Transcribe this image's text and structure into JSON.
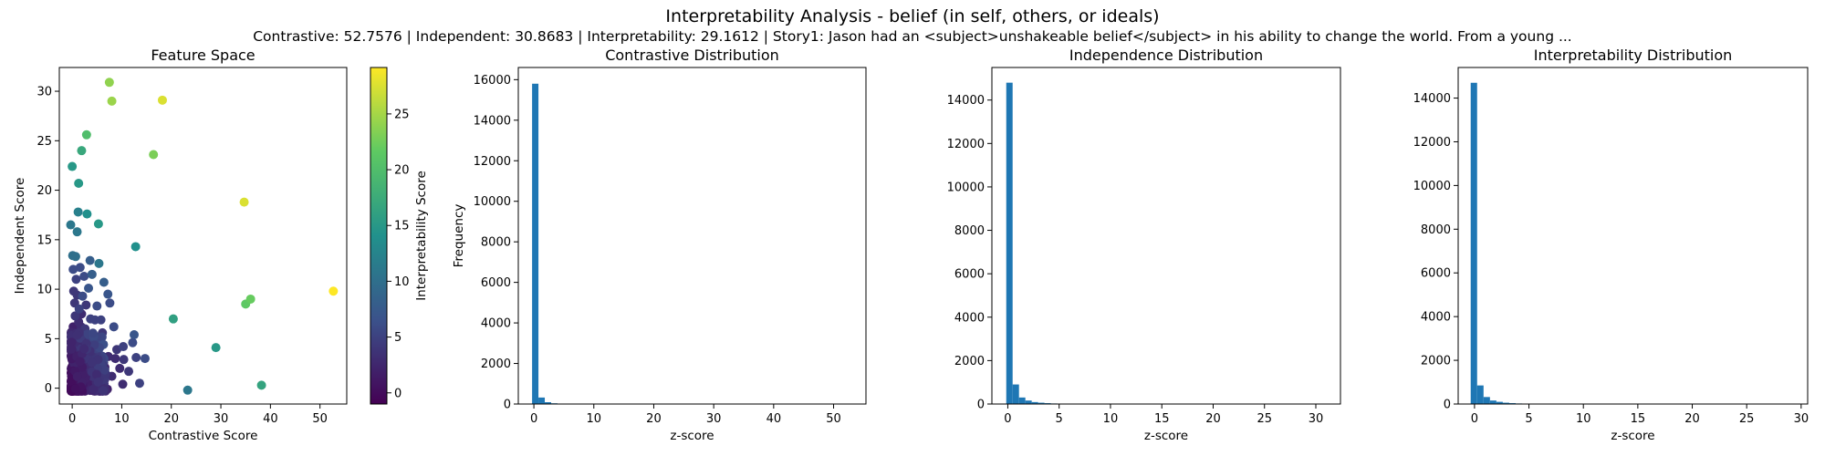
{
  "figure": {
    "title": "Interpretability Analysis - belief (in self, others, or ideals)",
    "subtitle": "Contrastive: 52.7576 | Independent: 30.8683 | Interpretability: 29.1612 | Story1: Jason had an <subject>unshakeable belief</subject> in his ability to change the world. From a young ..."
  },
  "colors": {
    "hist_bar": "#1f77b4",
    "colormap": "viridis"
  },
  "chart_data": [
    {
      "type": "scatter",
      "title": "Feature Space",
      "xlabel": "Contrastive Score",
      "ylabel": "Independent Score",
      "xlim": [
        -2.6,
        55.4
      ],
      "ylim": [
        -1.6,
        32.4
      ],
      "xticks": [
        0,
        10,
        20,
        30,
        40,
        50
      ],
      "yticks": [
        0,
        5,
        10,
        15,
        20,
        25,
        30
      ],
      "colorbar": {
        "label": "Interpretability Score",
        "range": [
          -1,
          29.16
        ],
        "ticks": [
          0,
          5,
          10,
          15,
          20,
          25
        ]
      },
      "grid": false,
      "points": [
        {
          "x": 52.7,
          "y": 9.8,
          "c": 29.2
        },
        {
          "x": 7.5,
          "y": 30.9,
          "c": 24
        },
        {
          "x": 18.2,
          "y": 29.1,
          "c": 27.5
        },
        {
          "x": 8.0,
          "y": 29.0,
          "c": 24.5
        },
        {
          "x": 2.9,
          "y": 25.6,
          "c": 20
        },
        {
          "x": 1.9,
          "y": 24.0,
          "c": 17
        },
        {
          "x": 16.4,
          "y": 23.6,
          "c": 23
        },
        {
          "x": 0.0,
          "y": 22.4,
          "c": 15
        },
        {
          "x": 1.3,
          "y": 20.7,
          "c": 15
        },
        {
          "x": 34.7,
          "y": 18.8,
          "c": 27.5
        },
        {
          "x": 1.2,
          "y": 17.8,
          "c": 12
        },
        {
          "x": 3.0,
          "y": 17.6,
          "c": 14
        },
        {
          "x": 5.3,
          "y": 16.6,
          "c": 15
        },
        {
          "x": -0.3,
          "y": 16.5,
          "c": 11
        },
        {
          "x": 1.0,
          "y": 15.8,
          "c": 11
        },
        {
          "x": 12.8,
          "y": 14.3,
          "c": 14
        },
        {
          "x": 0.1,
          "y": 13.4,
          "c": 10
        },
        {
          "x": 0.7,
          "y": 13.3,
          "c": 10
        },
        {
          "x": 5.4,
          "y": 12.6,
          "c": 11
        },
        {
          "x": 36.0,
          "y": 9.0,
          "c": 22
        },
        {
          "x": 35.0,
          "y": 8.5,
          "c": 21.5
        },
        {
          "x": 20.4,
          "y": 7.0,
          "c": 16
        },
        {
          "x": 29.0,
          "y": 4.1,
          "c": 15
        },
        {
          "x": 38.2,
          "y": 0.3,
          "c": 16.5
        },
        {
          "x": 23.3,
          "y": -0.2,
          "c": 11
        },
        {
          "x": 4.0,
          "y": 11.5,
          "c": 8
        },
        {
          "x": 6.4,
          "y": 10.7,
          "c": 8
        },
        {
          "x": 3.3,
          "y": 10.1,
          "c": 7
        },
        {
          "x": 7.2,
          "y": 9.5,
          "c": 7
        },
        {
          "x": 2.1,
          "y": 9.3,
          "c": 6
        },
        {
          "x": 5.0,
          "y": 8.3,
          "c": 6
        },
        {
          "x": 1.4,
          "y": 8.0,
          "c": 5
        },
        {
          "x": 7.6,
          "y": 8.6,
          "c": 6
        },
        {
          "x": 3.7,
          "y": 7.0,
          "c": 5
        },
        {
          "x": 4.6,
          "y": 6.9,
          "c": 5
        },
        {
          "x": 5.8,
          "y": 6.9,
          "c": 5
        },
        {
          "x": 8.4,
          "y": 6.2,
          "c": 6
        },
        {
          "x": 0.6,
          "y": 7.3,
          "c": 4
        },
        {
          "x": 2.6,
          "y": 6.0,
          "c": 4
        },
        {
          "x": 6.1,
          "y": 5.6,
          "c": 4
        },
        {
          "x": 12.5,
          "y": 5.4,
          "c": 7
        },
        {
          "x": 12.2,
          "y": 4.6,
          "c": 6
        },
        {
          "x": 10.3,
          "y": 4.2,
          "c": 5
        },
        {
          "x": 9.0,
          "y": 3.9,
          "c": 4
        },
        {
          "x": 14.7,
          "y": 3.0,
          "c": 6
        },
        {
          "x": 12.9,
          "y": 3.1,
          "c": 5
        },
        {
          "x": 10.4,
          "y": 2.9,
          "c": 4
        },
        {
          "x": 11.4,
          "y": 1.7,
          "c": 4
        },
        {
          "x": 13.6,
          "y": 0.5,
          "c": 5
        },
        {
          "x": 8.7,
          "y": 3.0,
          "c": 3
        },
        {
          "x": 7.3,
          "y": 3.2,
          "c": 3
        },
        {
          "x": 9.6,
          "y": 2.0,
          "c": 3
        },
        {
          "x": 8.0,
          "y": 1.2,
          "c": 3
        },
        {
          "x": 10.2,
          "y": 0.4,
          "c": 3
        },
        {
          "x": 5.4,
          "y": 4.1,
          "c": 3
        },
        {
          "x": 4.2,
          "y": 4.6,
          "c": 3
        },
        {
          "x": 6.6,
          "y": 2.1,
          "c": 2
        },
        {
          "x": 3.0,
          "y": 5.1,
          "c": 3
        },
        {
          "x": 1.8,
          "y": 6.2,
          "c": 3
        },
        {
          "x": 0.3,
          "y": 9.8,
          "c": 4
        },
        {
          "x": 0.8,
          "y": 11.0,
          "c": 5
        },
        {
          "x": 1.6,
          "y": 12.2,
          "c": 6
        },
        {
          "x": 2.4,
          "y": 11.3,
          "c": 6
        },
        {
          "x": 0.2,
          "y": 12.0,
          "c": 6
        },
        {
          "x": 3.6,
          "y": 12.9,
          "c": 8
        },
        {
          "x": 1.0,
          "y": 9.4,
          "c": 4
        },
        {
          "x": 2.8,
          "y": 8.4,
          "c": 4
        },
        {
          "x": 0.5,
          "y": 8.6,
          "c": 4
        },
        {
          "x": 1.9,
          "y": 7.5,
          "c": 3
        },
        {
          "x": 3.0,
          "y": 3.0,
          "c": 2
        },
        {
          "x": 4.0,
          "y": 2.2,
          "c": 2
        },
        {
          "x": 5.2,
          "y": 1.3,
          "c": 2
        },
        {
          "x": 6.2,
          "y": 0.6,
          "c": 2
        },
        {
          "x": 2.0,
          "y": 1.0,
          "c": 1
        },
        {
          "x": 1.2,
          "y": 2.4,
          "c": 1
        },
        {
          "x": 0.5,
          "y": 4.0,
          "c": 1.5
        },
        {
          "x": 0.3,
          "y": 1.5,
          "c": 0.5
        },
        {
          "x": 3.6,
          "y": 0.3,
          "c": 1
        },
        {
          "x": 7.1,
          "y": -0.1,
          "c": 2
        },
        {
          "x": 2.5,
          "y": 4.0,
          "c": 2
        },
        {
          "x": 4.4,
          "y": 3.3,
          "c": 2
        },
        {
          "x": 0.1,
          "y": 0.1,
          "c": 0
        },
        {
          "x": 1.0,
          "y": 0.4,
          "c": 0
        },
        {
          "x": 0.4,
          "y": 3.0,
          "c": 1
        },
        {
          "x": 1.7,
          "y": 3.6,
          "c": 1.5
        },
        {
          "x": 2.3,
          "y": 2.1,
          "c": 1
        },
        {
          "x": 3.2,
          "y": 1.6,
          "c": 1
        },
        {
          "x": 4.6,
          "y": 0.8,
          "c": 1.5
        },
        {
          "x": 0.6,
          "y": 5.4,
          "c": 2
        },
        {
          "x": 1.3,
          "y": 6.7,
          "c": 3
        },
        {
          "x": 0.2,
          "y": 6.2,
          "c": 2
        }
      ]
    },
    {
      "type": "bar",
      "title": "Contrastive Distribution",
      "xlabel": "z-score",
      "ylabel": "Frequency",
      "xlim": [
        -2.6,
        55.4
      ],
      "ylim": [
        0,
        16600
      ],
      "xticks": [
        0,
        10,
        20,
        30,
        40,
        50
      ],
      "yticks": [
        0,
        2000,
        4000,
        6000,
        8000,
        10000,
        12000,
        14000,
        16000
      ],
      "bin_edges_start": -0.3,
      "bin_width": 1.06,
      "values": [
        15800,
        320,
        90,
        35,
        18,
        10,
        7,
        5,
        3,
        2
      ]
    },
    {
      "type": "bar",
      "title": "Independence Distribution",
      "xlabel": "z-score",
      "ylabel": "",
      "xlim": [
        -1.55,
        32.4
      ],
      "ylim": [
        0,
        15500
      ],
      "xticks": [
        0,
        5,
        10,
        15,
        20,
        25,
        30
      ],
      "yticks": [
        0,
        2000,
        4000,
        6000,
        8000,
        10000,
        12000,
        14000
      ],
      "bin_edges_start": -0.15,
      "bin_width": 0.62,
      "values": [
        14800,
        900,
        300,
        160,
        90,
        60,
        40,
        25,
        15,
        10,
        6,
        4
      ]
    },
    {
      "type": "bar",
      "title": "Interpretability Distribution",
      "xlabel": "z-score",
      "ylabel": "",
      "xlim": [
        -1.5,
        30.6
      ],
      "ylim": [
        0,
        15400
      ],
      "xticks": [
        0,
        5,
        10,
        15,
        20,
        25,
        30
      ],
      "yticks": [
        0,
        2000,
        4000,
        6000,
        8000,
        10000,
        12000,
        14000
      ],
      "bin_edges_start": -0.35,
      "bin_width": 0.59,
      "values": [
        14700,
        850,
        320,
        160,
        100,
        60,
        40,
        25,
        15,
        10,
        6
      ]
    }
  ]
}
